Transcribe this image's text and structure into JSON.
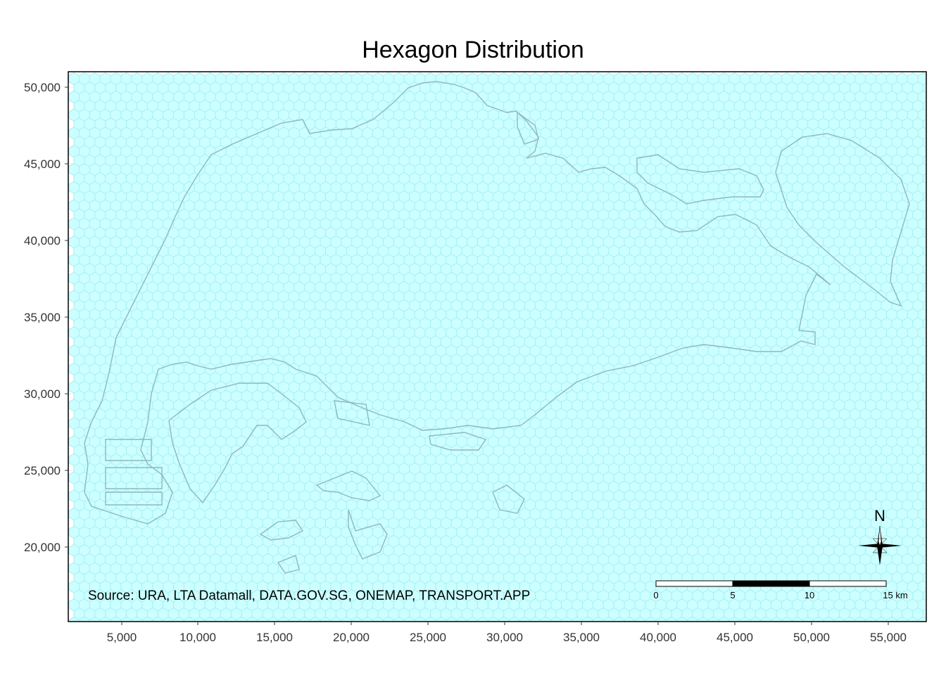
{
  "title": "Hexagon Distribution",
  "source": "Source: URA, LTA Datamall, DATA.GOV.SG, ONEMAP, TRANSPORT.APP",
  "north": "N",
  "x_ticks": [
    "5,000",
    "10,000",
    "15,000",
    "20,000",
    "25,000",
    "30,000",
    "35,000",
    "40,000",
    "45,000",
    "50,000",
    "55,000"
  ],
  "y_ticks": [
    "50,000",
    "45,000",
    "40,000",
    "35,000",
    "30,000",
    "25,000",
    "20,000"
  ],
  "scale_bar": {
    "labels": [
      "0",
      "5",
      "10",
      "15 km"
    ]
  },
  "colors": {
    "hex_fill": "#ccffff",
    "hex_stroke": "#a6eef2",
    "outline": "#8fb8bc",
    "frame": "#000000",
    "grid": "#ebebeb"
  }
}
